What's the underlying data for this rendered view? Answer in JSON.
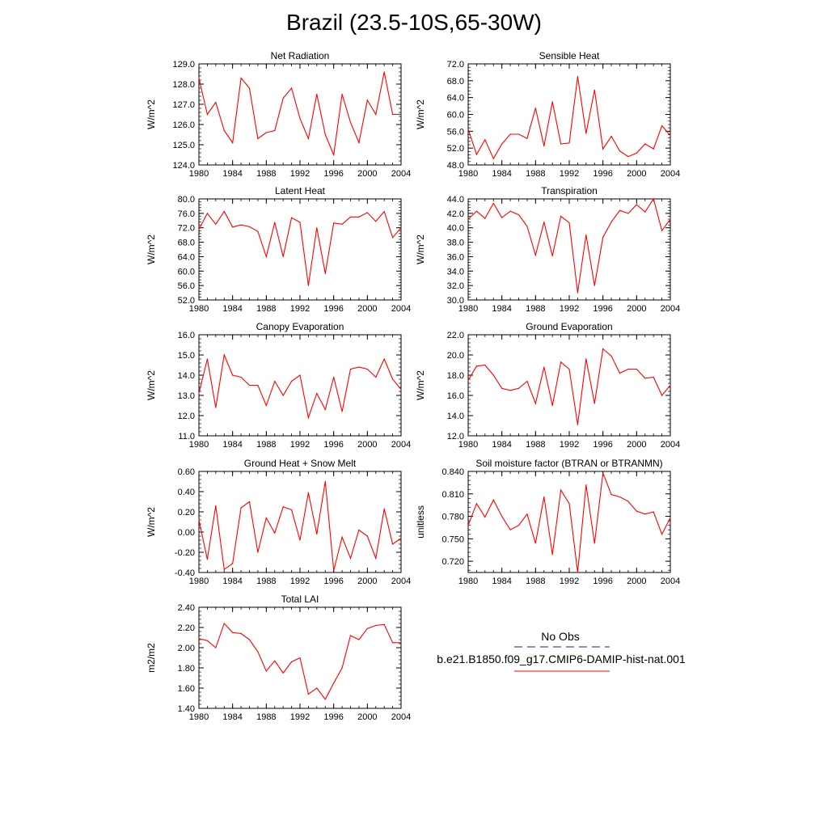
{
  "figure_title": "Brazil (23.5-10S,65-30W)",
  "legend": {
    "obs_label": "No Obs",
    "model_label": "b.e21.B1850.f09_g17.CMIP6-DAMIP-hist-nat.001",
    "obs_color": "#1a1a8c",
    "model_color": "#ff0000"
  },
  "chart_data": [
    {
      "type": "line",
      "title": "Net Radiation",
      "ylabel": "W/m^2",
      "xlim": [
        1980,
        2004
      ],
      "ylim": [
        124.0,
        129.0
      ],
      "x_ticks": [
        "1980",
        "1984",
        "1988",
        "1992",
        "1996",
        "2000",
        "2004"
      ],
      "y_ticks": [
        "124.0",
        "125.0",
        "126.0",
        "127.0",
        "128.0",
        "129.0"
      ],
      "x": [
        1980,
        1981,
        1982,
        1983,
        1984,
        1985,
        1986,
        1987,
        1988,
        1989,
        1990,
        1991,
        1992,
        1993,
        1994,
        1995,
        1996,
        1997,
        1998,
        1999,
        2000,
        2001,
        2002,
        2003,
        2004
      ],
      "series": [
        {
          "color": "#ff0000",
          "values": [
            128.3,
            126.5,
            127.1,
            125.7,
            125.1,
            128.3,
            127.8,
            125.3,
            125.6,
            125.7,
            127.3,
            127.8,
            126.3,
            125.3,
            127.5,
            125.5,
            124.5,
            127.5,
            126.1,
            125.1,
            127.2,
            126.5,
            128.6,
            126.5,
            126.5
          ]
        }
      ]
    },
    {
      "type": "line",
      "title": "Sensible Heat",
      "ylabel": "W/m^2",
      "xlim": [
        1980,
        2004
      ],
      "ylim": [
        48.0,
        72.0
      ],
      "x_ticks": [
        "1980",
        "1984",
        "1988",
        "1992",
        "1996",
        "2000",
        "2004"
      ],
      "y_ticks": [
        "48.0",
        "52.0",
        "56.0",
        "60.0",
        "64.0",
        "68.0",
        "72.0"
      ],
      "x": [
        1980,
        1981,
        1982,
        1983,
        1984,
        1985,
        1986,
        1987,
        1988,
        1989,
        1990,
        1991,
        1992,
        1993,
        1994,
        1995,
        1996,
        1997,
        1998,
        1999,
        2000,
        2001,
        2002,
        2003,
        2004
      ],
      "series": [
        {
          "color": "#ff0000",
          "values": [
            56.5,
            50.5,
            54.0,
            49.5,
            53.0,
            55.3,
            55.3,
            54.3,
            61.5,
            52.5,
            63.0,
            53.0,
            53.2,
            69.0,
            55.5,
            65.8,
            51.8,
            54.8,
            51.3,
            50.0,
            50.8,
            53.0,
            51.8,
            57.3,
            55.0
          ]
        }
      ]
    },
    {
      "type": "line",
      "title": "Latent Heat",
      "ylabel": "W/m^2",
      "xlim": [
        1980,
        2004
      ],
      "ylim": [
        52.0,
        80.0
      ],
      "x_ticks": [
        "1980",
        "1984",
        "1988",
        "1992",
        "1996",
        "2000",
        "2004"
      ],
      "y_ticks": [
        "52.0",
        "56.0",
        "60.0",
        "64.0",
        "68.0",
        "72.0",
        "76.0",
        "80.0"
      ],
      "x": [
        1980,
        1981,
        1982,
        1983,
        1984,
        1985,
        1986,
        1987,
        1988,
        1989,
        1990,
        1991,
        1992,
        1993,
        1994,
        1995,
        1996,
        1997,
        1998,
        1999,
        2000,
        2001,
        2002,
        2003,
        2004
      ],
      "series": [
        {
          "color": "#ff0000",
          "values": [
            71.5,
            76.0,
            73.0,
            76.5,
            72.2,
            72.8,
            72.3,
            71.0,
            64.0,
            73.5,
            64.0,
            74.8,
            73.5,
            56.0,
            72.0,
            59.3,
            73.3,
            73.0,
            75.0,
            75.0,
            76.2,
            73.8,
            76.5,
            69.3,
            72.0
          ]
        }
      ]
    },
    {
      "type": "line",
      "title": "Transpiration",
      "ylabel": "W/m^2",
      "xlim": [
        1980,
        2004
      ],
      "ylim": [
        30.0,
        44.0
      ],
      "x_ticks": [
        "1980",
        "1984",
        "1988",
        "1992",
        "1996",
        "2000",
        "2004"
      ],
      "y_ticks": [
        "30.0",
        "32.0",
        "34.0",
        "36.0",
        "38.0",
        "40.0",
        "42.0",
        "44.0"
      ],
      "x": [
        1980,
        1981,
        1982,
        1983,
        1984,
        1985,
        1986,
        1987,
        1988,
        1989,
        1990,
        1991,
        1992,
        1993,
        1994,
        1995,
        1996,
        1997,
        1998,
        1999,
        2000,
        2001,
        2002,
        2003,
        2004
      ],
      "series": [
        {
          "color": "#ff0000",
          "values": [
            41.2,
            42.3,
            41.3,
            43.4,
            41.4,
            42.3,
            41.8,
            40.2,
            36.2,
            40.8,
            36.1,
            41.6,
            40.7,
            31.0,
            39.0,
            32.0,
            38.7,
            40.8,
            42.4,
            42.0,
            43.2,
            42.2,
            44.0,
            39.6,
            41.2
          ]
        }
      ]
    },
    {
      "type": "line",
      "title": "Canopy Evaporation",
      "ylabel": "W/m^2",
      "xlim": [
        1980,
        2004
      ],
      "ylim": [
        11.0,
        16.0
      ],
      "x_ticks": [
        "1980",
        "1984",
        "1988",
        "1992",
        "1996",
        "2000",
        "2004"
      ],
      "y_ticks": [
        "11.0",
        "12.0",
        "13.0",
        "14.0",
        "15.0",
        "16.0"
      ],
      "x": [
        1980,
        1981,
        1982,
        1983,
        1984,
        1985,
        1986,
        1987,
        1988,
        1989,
        1990,
        1991,
        1992,
        1993,
        1994,
        1995,
        1996,
        1997,
        1998,
        1999,
        2000,
        2001,
        2002,
        2003,
        2004
      ],
      "series": [
        {
          "color": "#ff0000",
          "values": [
            13.1,
            14.8,
            12.4,
            15.0,
            14.0,
            13.9,
            13.5,
            13.5,
            12.5,
            13.7,
            13.0,
            13.7,
            14.0,
            11.9,
            13.1,
            12.3,
            13.9,
            12.2,
            14.3,
            14.4,
            14.3,
            13.9,
            14.8,
            13.8,
            13.3
          ]
        }
      ]
    },
    {
      "type": "line",
      "title": "Ground Evaporation",
      "ylabel": "W/m^2",
      "xlim": [
        1980,
        2004
      ],
      "ylim": [
        12.0,
        22.0
      ],
      "x_ticks": [
        "1980",
        "1984",
        "1988",
        "1992",
        "1996",
        "2000",
        "2004"
      ],
      "y_ticks": [
        "12.0",
        "14.0",
        "16.0",
        "18.0",
        "20.0",
        "22.0"
      ],
      "x": [
        1980,
        1981,
        1982,
        1983,
        1984,
        1985,
        1986,
        1987,
        1988,
        1989,
        1990,
        1991,
        1992,
        1993,
        1994,
        1995,
        1996,
        1997,
        1998,
        1999,
        2000,
        2001,
        2002,
        2003,
        2004
      ],
      "series": [
        {
          "color": "#ff0000",
          "values": [
            17.5,
            18.9,
            19.0,
            18.0,
            16.7,
            16.5,
            16.7,
            17.4,
            15.2,
            18.8,
            15.0,
            19.3,
            18.6,
            13.1,
            19.6,
            15.2,
            20.6,
            19.9,
            18.2,
            18.6,
            18.6,
            17.7,
            17.8,
            16.0,
            17.0
          ]
        }
      ]
    },
    {
      "type": "line",
      "title": "Ground Heat + Snow Melt",
      "ylabel": "W/m^2",
      "xlim": [
        1980,
        2004
      ],
      "ylim": [
        -0.4,
        0.6
      ],
      "x_ticks": [
        "1980",
        "1984",
        "1988",
        "1992",
        "1996",
        "2000",
        "2004"
      ],
      "y_ticks": [
        "-0.40",
        "-0.20",
        "0.00",
        "0.20",
        "0.40",
        "0.60"
      ],
      "x": [
        1980,
        1981,
        1982,
        1983,
        1984,
        1985,
        1986,
        1987,
        1988,
        1989,
        1990,
        1991,
        1992,
        1993,
        1994,
        1995,
        1996,
        1997,
        1998,
        1999,
        2000,
        2001,
        2002,
        2003,
        2004
      ],
      "series": [
        {
          "color": "#ff0000",
          "values": [
            0.12,
            -0.27,
            0.26,
            -0.37,
            -0.31,
            0.24,
            0.3,
            -0.2,
            0.14,
            -0.01,
            0.25,
            0.22,
            -0.08,
            0.39,
            -0.02,
            0.5,
            -0.38,
            -0.05,
            -0.26,
            0.02,
            -0.04,
            -0.26,
            0.23,
            -0.12,
            -0.06
          ]
        }
      ]
    },
    {
      "type": "line",
      "title": "Soil moisture factor (BTRAN or BTRANMN)",
      "ylabel": "unitless",
      "xlim": [
        1980,
        2004
      ],
      "ylim": [
        0.705,
        0.84
      ],
      "x_ticks": [
        "1980",
        "1984",
        "1988",
        "1992",
        "1996",
        "2000",
        "2004"
      ],
      "y_ticks": [
        "0.720",
        "0.750",
        "0.780",
        "0.810",
        "0.840"
      ],
      "x": [
        1980,
        1981,
        1982,
        1983,
        1984,
        1985,
        1986,
        1987,
        1988,
        1989,
        1990,
        1991,
        1992,
        1993,
        1994,
        1995,
        1996,
        1997,
        1998,
        1999,
        2000,
        2001,
        2002,
        2003,
        2004
      ],
      "series": [
        {
          "color": "#ff0000",
          "values": [
            0.768,
            0.797,
            0.779,
            0.802,
            0.78,
            0.762,
            0.768,
            0.783,
            0.744,
            0.806,
            0.729,
            0.815,
            0.797,
            0.705,
            0.822,
            0.744,
            0.838,
            0.809,
            0.806,
            0.8,
            0.787,
            0.783,
            0.786,
            0.756,
            0.778
          ]
        }
      ]
    },
    {
      "type": "line",
      "title": "Total LAI",
      "ylabel": "m2/m2",
      "xlim": [
        1980,
        2004
      ],
      "ylim": [
        1.4,
        2.4
      ],
      "x_ticks": [
        "1980",
        "1984",
        "1988",
        "1992",
        "1996",
        "2000",
        "2004"
      ],
      "y_ticks": [
        "1.40",
        "1.60",
        "1.80",
        "2.00",
        "2.20",
        "2.40"
      ],
      "x": [
        1980,
        1981,
        1982,
        1983,
        1984,
        1985,
        1986,
        1987,
        1988,
        1989,
        1990,
        1991,
        1992,
        1993,
        1994,
        1995,
        1996,
        1997,
        1998,
        1999,
        2000,
        2001,
        2002,
        2003,
        2004
      ],
      "series": [
        {
          "color": "#ff0000",
          "values": [
            2.09,
            2.07,
            2.0,
            2.24,
            2.15,
            2.14,
            2.08,
            1.96,
            1.77,
            1.87,
            1.75,
            1.86,
            1.9,
            1.54,
            1.6,
            1.49,
            1.65,
            1.8,
            2.12,
            2.08,
            2.19,
            2.22,
            2.23,
            2.05,
            2.05
          ]
        }
      ]
    }
  ]
}
